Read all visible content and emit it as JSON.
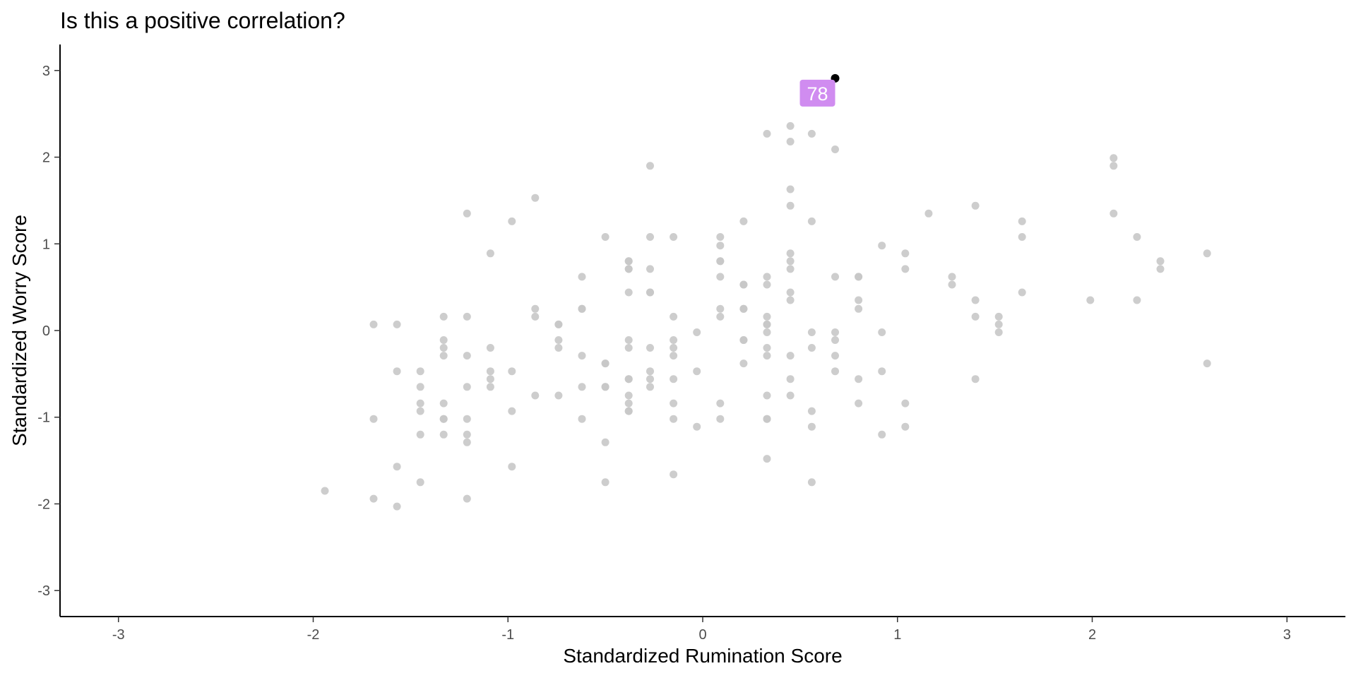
{
  "chart_data": {
    "type": "scatter",
    "title": "Is this a positive correlation?",
    "xlabel": "Standardized Rumination Score",
    "ylabel": "Standardized Worry Score",
    "xlim": [
      -3.3,
      3.3
    ],
    "ylim": [
      -3.3,
      3.3
    ],
    "xticks": [
      -3,
      -2,
      -1,
      0,
      1,
      2,
      3
    ],
    "yticks": [
      -3,
      -2,
      -1,
      0,
      1,
      2,
      3
    ],
    "xtick_labels": [
      "-3",
      "-2",
      "-1",
      "0",
      "1",
      "2",
      "3"
    ],
    "ytick_labels": [
      "-3",
      "-2",
      "-1",
      "0",
      "1",
      "2",
      "3"
    ],
    "grid": false,
    "point_color": "#c8c8c8",
    "highlight_color": "#000000",
    "label_color": "#d08cf0",
    "highlight": {
      "label": "78",
      "x": 0.68,
      "y": 2.91
    },
    "points": [
      [
        -1.94,
        -1.85
      ],
      [
        -1.69,
        0.07
      ],
      [
        -1.69,
        -1.02
      ],
      [
        -1.69,
        -1.94
      ],
      [
        -1.57,
        0.07
      ],
      [
        -1.57,
        -0.47
      ],
      [
        -1.57,
        -1.57
      ],
      [
        -1.57,
        -2.03
      ],
      [
        -1.45,
        -0.47
      ],
      [
        -1.45,
        -0.65
      ],
      [
        -1.45,
        -0.84
      ],
      [
        -1.45,
        -0.93
      ],
      [
        -1.45,
        -1.2
      ],
      [
        -1.45,
        -1.75
      ],
      [
        -1.33,
        0.16
      ],
      [
        -1.33,
        -0.11
      ],
      [
        -1.33,
        -0.2
      ],
      [
        -1.33,
        -0.29
      ],
      [
        -1.33,
        -0.84
      ],
      [
        -1.33,
        -1.02
      ],
      [
        -1.33,
        -1.02
      ],
      [
        -1.33,
        -1.2
      ],
      [
        -1.21,
        1.35
      ],
      [
        -1.21,
        0.16
      ],
      [
        -1.21,
        -0.29
      ],
      [
        -1.21,
        -0.65
      ],
      [
        -1.21,
        -1.02
      ],
      [
        -1.21,
        -1.2
      ],
      [
        -1.21,
        -1.29
      ],
      [
        -1.21,
        -1.94
      ],
      [
        -1.09,
        0.89
      ],
      [
        -1.09,
        -0.2
      ],
      [
        -1.09,
        -0.47
      ],
      [
        -1.09,
        -0.56
      ],
      [
        -1.09,
        -0.65
      ],
      [
        -0.98,
        1.26
      ],
      [
        -0.98,
        -0.47
      ],
      [
        -0.98,
        -0.93
      ],
      [
        -0.98,
        -1.57
      ],
      [
        -0.86,
        1.53
      ],
      [
        -0.86,
        0.25
      ],
      [
        -0.86,
        0.16
      ],
      [
        -0.86,
        -0.75
      ],
      [
        -0.74,
        0.07
      ],
      [
        -0.74,
        0.07
      ],
      [
        -0.74,
        -0.11
      ],
      [
        -0.74,
        -0.2
      ],
      [
        -0.74,
        -0.75
      ],
      [
        -0.62,
        0.62
      ],
      [
        -0.62,
        0.25
      ],
      [
        -0.62,
        0.25
      ],
      [
        -0.62,
        -0.29
      ],
      [
        -0.62,
        -0.65
      ],
      [
        -0.62,
        -1.02
      ],
      [
        -0.5,
        1.08
      ],
      [
        -0.5,
        -0.38
      ],
      [
        -0.5,
        -0.38
      ],
      [
        -0.5,
        -0.65
      ],
      [
        -0.5,
        -0.65
      ],
      [
        -0.5,
        -1.29
      ],
      [
        -0.5,
        -1.75
      ],
      [
        -0.38,
        0.8
      ],
      [
        -0.38,
        0.8
      ],
      [
        -0.38,
        0.71
      ],
      [
        -0.38,
        0.71
      ],
      [
        -0.38,
        0.44
      ],
      [
        -0.38,
        -0.11
      ],
      [
        -0.38,
        -0.2
      ],
      [
        -0.38,
        -0.56
      ],
      [
        -0.38,
        -0.56
      ],
      [
        -0.38,
        -0.75
      ],
      [
        -0.38,
        -0.84
      ],
      [
        -0.38,
        -0.93
      ],
      [
        -0.38,
        -0.93
      ],
      [
        -0.27,
        1.9
      ],
      [
        -0.27,
        1.08
      ],
      [
        -0.27,
        0.71
      ],
      [
        -0.27,
        0.44
      ],
      [
        -0.27,
        0.44
      ],
      [
        -0.27,
        -0.2
      ],
      [
        -0.27,
        -0.47
      ],
      [
        -0.27,
        -0.56
      ],
      [
        -0.27,
        -0.65
      ],
      [
        -0.15,
        1.08
      ],
      [
        -0.15,
        0.16
      ],
      [
        -0.15,
        -0.11
      ],
      [
        -0.15,
        -0.2
      ],
      [
        -0.15,
        -0.29
      ],
      [
        -0.15,
        -0.56
      ],
      [
        -0.15,
        -0.84
      ],
      [
        -0.15,
        -1.02
      ],
      [
        -0.15,
        -1.66
      ],
      [
        -0.03,
        -0.02
      ],
      [
        -0.03,
        -0.47
      ],
      [
        -0.03,
        -1.11
      ],
      [
        0.09,
        1.08
      ],
      [
        0.09,
        0.98
      ],
      [
        0.09,
        0.8
      ],
      [
        0.09,
        0.8
      ],
      [
        0.09,
        0.62
      ],
      [
        0.09,
        0.25
      ],
      [
        0.09,
        0.16
      ],
      [
        0.09,
        -0.84
      ],
      [
        0.09,
        -1.02
      ],
      [
        0.21,
        1.26
      ],
      [
        0.21,
        0.53
      ],
      [
        0.21,
        0.53
      ],
      [
        0.21,
        0.25
      ],
      [
        0.21,
        0.25
      ],
      [
        0.21,
        -0.11
      ],
      [
        0.21,
        -0.11
      ],
      [
        0.21,
        -0.38
      ],
      [
        0.33,
        2.27
      ],
      [
        0.33,
        0.62
      ],
      [
        0.33,
        0.53
      ],
      [
        0.33,
        0.16
      ],
      [
        0.33,
        0.07
      ],
      [
        0.33,
        0.07
      ],
      [
        0.33,
        -0.02
      ],
      [
        0.33,
        -0.2
      ],
      [
        0.33,
        -0.29
      ],
      [
        0.33,
        -0.75
      ],
      [
        0.33,
        -1.02
      ],
      [
        0.33,
        -1.02
      ],
      [
        0.33,
        -1.48
      ],
      [
        0.45,
        2.36
      ],
      [
        0.45,
        2.18
      ],
      [
        0.45,
        1.63
      ],
      [
        0.45,
        1.44
      ],
      [
        0.45,
        0.89
      ],
      [
        0.45,
        0.8
      ],
      [
        0.45,
        0.71
      ],
      [
        0.45,
        0.44
      ],
      [
        0.45,
        0.35
      ],
      [
        0.45,
        -0.29
      ],
      [
        0.45,
        -0.56
      ],
      [
        0.45,
        -0.75
      ],
      [
        0.56,
        2.27
      ],
      [
        0.56,
        1.26
      ],
      [
        0.56,
        -0.02
      ],
      [
        0.56,
        -0.2
      ],
      [
        0.56,
        -0.93
      ],
      [
        0.56,
        -1.11
      ],
      [
        0.56,
        -1.75
      ],
      [
        0.68,
        2.09
      ],
      [
        0.68,
        0.62
      ],
      [
        0.68,
        -0.02
      ],
      [
        0.68,
        -0.11
      ],
      [
        0.68,
        -0.29
      ],
      [
        0.68,
        -0.47
      ],
      [
        0.8,
        0.62
      ],
      [
        0.8,
        0.62
      ],
      [
        0.8,
        0.35
      ],
      [
        0.8,
        0.25
      ],
      [
        0.8,
        -0.56
      ],
      [
        0.8,
        -0.84
      ],
      [
        0.92,
        0.98
      ],
      [
        0.92,
        -0.02
      ],
      [
        0.92,
        -0.47
      ],
      [
        0.92,
        -1.2
      ],
      [
        1.04,
        0.89
      ],
      [
        1.04,
        0.71
      ],
      [
        1.04,
        -0.84
      ],
      [
        1.04,
        -1.11
      ],
      [
        1.16,
        1.35
      ],
      [
        1.28,
        0.62
      ],
      [
        1.28,
        0.53
      ],
      [
        1.4,
        1.44
      ],
      [
        1.4,
        0.35
      ],
      [
        1.4,
        0.16
      ],
      [
        1.4,
        -0.56
      ],
      [
        1.52,
        0.16
      ],
      [
        1.52,
        0.07
      ],
      [
        1.52,
        -0.02
      ],
      [
        1.64,
        1.26
      ],
      [
        1.64,
        1.08
      ],
      [
        1.64,
        0.44
      ],
      [
        1.99,
        0.35
      ],
      [
        2.11,
        1.99
      ],
      [
        2.11,
        1.9
      ],
      [
        2.11,
        1.35
      ],
      [
        2.23,
        1.08
      ],
      [
        2.23,
        0.35
      ],
      [
        2.35,
        0.8
      ],
      [
        2.35,
        0.71
      ],
      [
        2.59,
        0.89
      ],
      [
        2.59,
        -0.38
      ]
    ]
  }
}
